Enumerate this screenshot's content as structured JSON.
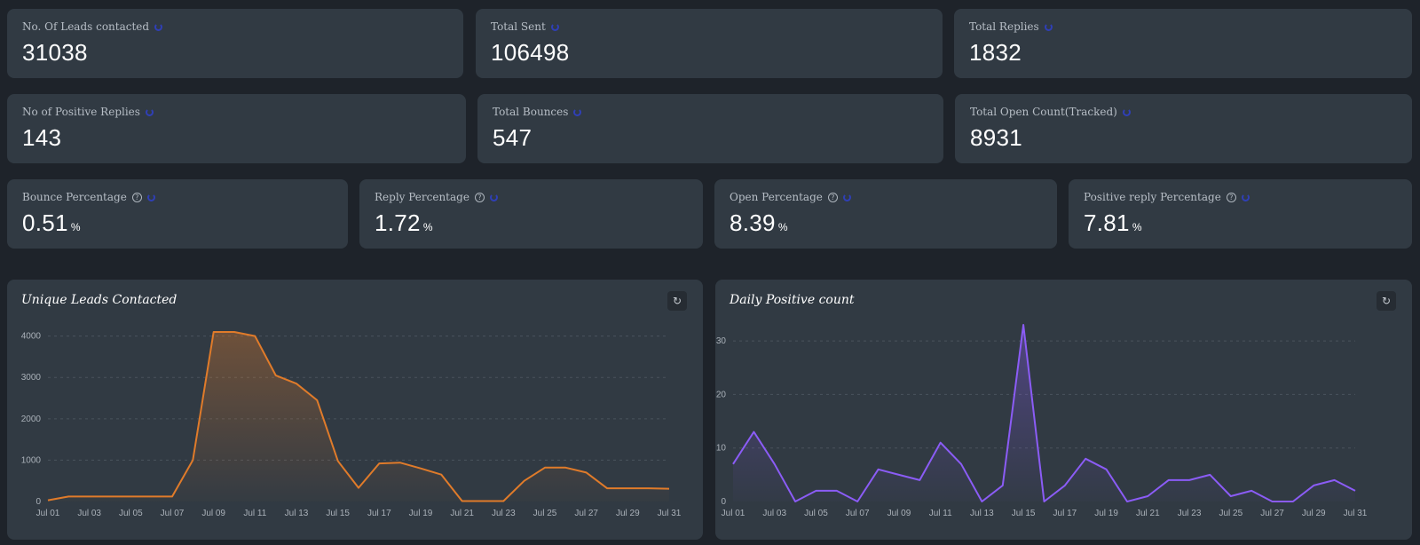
{
  "stats_row1": [
    {
      "label": "No. Of Leads contacted",
      "value": "31038"
    },
    {
      "label": "Total Sent",
      "value": "106498"
    },
    {
      "label": "Total Replies",
      "value": "1832"
    }
  ],
  "stats_row2": [
    {
      "label": "No of Positive Replies",
      "value": "143"
    },
    {
      "label": "Total Bounces",
      "value": "547"
    },
    {
      "label": "Total Open Count(Tracked)",
      "value": "8931"
    }
  ],
  "stats_row3": [
    {
      "label": "Bounce Percentage",
      "value": "0.51",
      "unit": "%"
    },
    {
      "label": "Reply Percentage",
      "value": "1.72",
      "unit": "%"
    },
    {
      "label": "Open Percentage",
      "value": "8.39",
      "unit": "%"
    },
    {
      "label": "Positive reply Percentage",
      "value": "7.81",
      "unit": "%"
    }
  ],
  "icons": {
    "refresh": "refresh-icon",
    "help": "help-icon"
  },
  "help_glyph": "?",
  "refresh_glyph": "↻",
  "chart_data": [
    {
      "type": "area",
      "title": "Unique Leads Contacted",
      "color": "#e07b2a",
      "x": [
        "Jul 01",
        "Jul 02",
        "Jul 03",
        "Jul 04",
        "Jul 05",
        "Jul 06",
        "Jul 07",
        "Jul 08",
        "Jul 09",
        "Jul 10",
        "Jul 11",
        "Jul 12",
        "Jul 13",
        "Jul 14",
        "Jul 15",
        "Jul 16",
        "Jul 17",
        "Jul 18",
        "Jul 19",
        "Jul 20",
        "Jul 21",
        "Jul 22",
        "Jul 23",
        "Jul 24",
        "Jul 25",
        "Jul 26",
        "Jul 27",
        "Jul 28",
        "Jul 29",
        "Jul 30",
        "Jul 31"
      ],
      "x_tick_labels": [
        "Jul 01",
        "Jul 03",
        "Jul 05",
        "Jul 07",
        "Jul 09",
        "Jul 11",
        "Jul 13",
        "Jul 15",
        "Jul 17",
        "Jul 19",
        "Jul 21",
        "Jul 23",
        "Jul 25",
        "Jul 27",
        "Jul 29",
        "Jul 31"
      ],
      "values": [
        30,
        120,
        120,
        120,
        120,
        120,
        120,
        1000,
        4100,
        4100,
        4000,
        3050,
        2850,
        2450,
        980,
        330,
        920,
        940,
        800,
        650,
        10,
        10,
        10,
        500,
        820,
        820,
        700,
        320,
        320,
        320,
        310
      ],
      "yticks": [
        0,
        1000,
        2000,
        3000,
        4000
      ],
      "ylim": [
        0,
        4400
      ],
      "grid": true
    },
    {
      "type": "area",
      "title": "Daily Positive count",
      "color": "#8b5cf6",
      "x": [
        "Jul 01",
        "Jul 02",
        "Jul 03",
        "Jul 04",
        "Jul 05",
        "Jul 06",
        "Jul 07",
        "Jul 08",
        "Jul 09",
        "Jul 10",
        "Jul 11",
        "Jul 12",
        "Jul 13",
        "Jul 14",
        "Jul 15",
        "Jul 16",
        "Jul 17",
        "Jul 18",
        "Jul 19",
        "Jul 20",
        "Jul 21",
        "Jul 22",
        "Jul 23",
        "Jul 24",
        "Jul 25",
        "Jul 26",
        "Jul 27",
        "Jul 28",
        "Jul 29",
        "Jul 30",
        "Jul 31"
      ],
      "x_tick_labels": [
        "Jul 01",
        "Jul 03",
        "Jul 05",
        "Jul 07",
        "Jul 09",
        "Jul 11",
        "Jul 13",
        "Jul 15",
        "Jul 17",
        "Jul 19",
        "Jul 21",
        "Jul 23",
        "Jul 25",
        "Jul 27",
        "Jul 29",
        "Jul 31"
      ],
      "values": [
        7,
        13,
        7,
        0,
        2,
        2,
        0,
        6,
        5,
        4,
        11,
        7,
        0,
        3,
        33,
        0,
        3,
        8,
        6,
        0,
        1,
        4,
        4,
        5,
        1,
        2,
        0,
        0,
        3,
        4,
        2
      ],
      "yticks": [
        0,
        10,
        20,
        30
      ],
      "ylim": [
        0,
        34
      ],
      "grid": true
    }
  ]
}
